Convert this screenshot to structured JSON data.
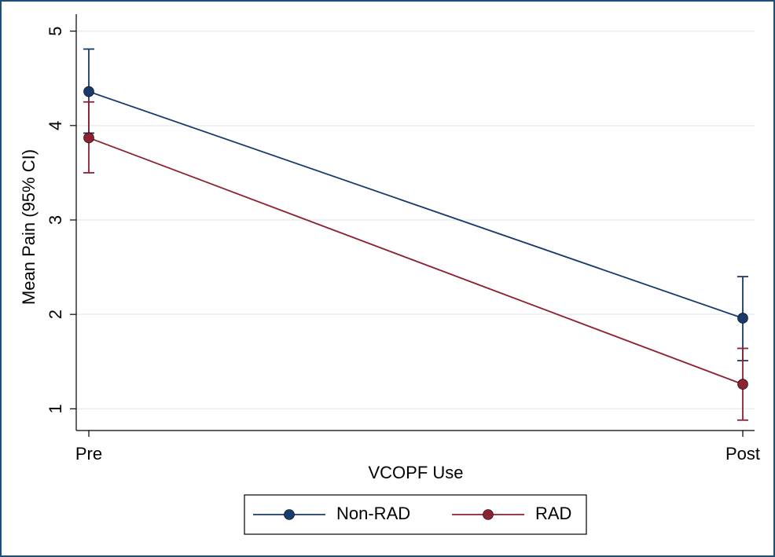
{
  "chart_data": {
    "type": "line",
    "x_label": "VCOPF Use",
    "y_label": "Mean Pain (95% CI)",
    "categories": [
      "Pre",
      "Post"
    ],
    "series": [
      {
        "name": "Non-RAD",
        "color": "#1a3a6b",
        "values": [
          4.36,
          1.96
        ],
        "ci_lower": [
          3.92,
          1.51
        ],
        "ci_upper": [
          4.81,
          2.4
        ]
      },
      {
        "name": "RAD",
        "color": "#8c2232",
        "values": [
          3.87,
          1.26
        ],
        "ci_lower": [
          3.5,
          0.88
        ],
        "ci_upper": [
          4.25,
          1.64
        ]
      }
    ],
    "ylim": [
      0.77,
      5.18
    ],
    "yticks": [
      1,
      2,
      3,
      4,
      5
    ],
    "grid": true,
    "legend": "bottom"
  }
}
